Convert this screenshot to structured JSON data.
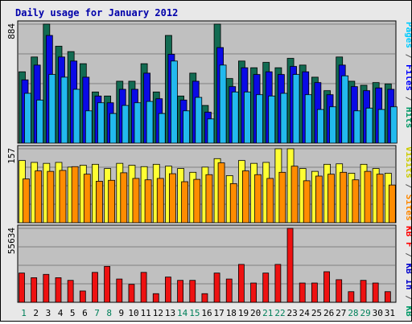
{
  "chart_data": {
    "type": "bar",
    "title": "Daily usage for January 2012",
    "days": [
      "1",
      "2",
      "3",
      "4",
      "5",
      "6",
      "7",
      "8",
      "9",
      "10",
      "11",
      "12",
      "13",
      "14",
      "15",
      "16",
      "17",
      "18",
      "19",
      "20",
      "21",
      "22",
      "23",
      "24",
      "25",
      "26",
      "27",
      "28",
      "29",
      "30",
      "31"
    ],
    "weekend_days": [
      "1",
      "7",
      "8",
      "14",
      "15",
      "21",
      "22",
      "28",
      "29"
    ],
    "panels": [
      {
        "id": "top",
        "max_label": "884",
        "ymax": 884,
        "right_label": [
          {
            "text": "Pages",
            "color": "#00ccff"
          },
          {
            "text": " / ",
            "color": "#555555"
          },
          {
            "text": "Files",
            "color": "#0000ff"
          },
          {
            "text": " / ",
            "color": "#555555"
          },
          {
            "text": "Hits",
            "color": "#009966"
          }
        ],
        "series": [
          {
            "name": "Hits",
            "color": "#126b52",
            "values": [
              530,
              640,
              884,
              720,
              680,
              590,
              380,
              350,
              460,
              460,
              590,
              380,
              800,
              350,
              520,
              280,
              884,
              480,
              610,
              560,
              600,
              560,
              630,
              580,
              490,
              390,
              640,
              460,
              430,
              450,
              440
            ]
          },
          {
            "name": "Files",
            "color": "#0a0ae6",
            "values": [
              470,
              580,
              800,
              640,
              610,
              490,
              350,
              300,
              400,
              400,
              520,
              330,
              660,
              320,
              460,
              230,
              710,
              420,
              560,
              510,
              530,
              510,
              570,
              530,
              450,
              360,
              580,
              420,
              390,
              410,
              400
            ]
          },
          {
            "name": "Pages",
            "color": "#22b9ee",
            "values": [
              370,
              320,
              510,
              490,
              400,
              240,
              300,
              220,
              280,
              300,
              310,
              220,
              610,
              240,
              340,
              180,
              580,
              380,
              380,
              360,
              350,
              370,
              510,
              360,
              250,
              270,
              500,
              240,
              260,
              250,
              270
            ]
          }
        ]
      },
      {
        "id": "middle",
        "max_label": "157",
        "ymax": 157,
        "right_label": [
          {
            "text": "Visits",
            "color": "#cccc00"
          },
          {
            "text": " / ",
            "color": "#555555"
          },
          {
            "text": "Sites",
            "color": "#ff8800"
          }
        ],
        "series": [
          {
            "name": "Visits",
            "color": "#ffff33",
            "values": [
              132,
              128,
              126,
              128,
              118,
              122,
              124,
              115,
              126,
              122,
              119,
              124,
              120,
              115,
              107,
              118,
              136,
              100,
              132,
              126,
              128,
              157,
              157,
              115,
              109,
              124,
              125,
              105,
              124,
              115,
              105
            ]
          },
          {
            "name": "Sites",
            "color": "#ff8c00",
            "values": [
              93,
              110,
              109,
              111,
              119,
              103,
              88,
              90,
              106,
              94,
              91,
              94,
              104,
              87,
              92,
              102,
              127,
              83,
              110,
              102,
              94,
              107,
              120,
              89,
              99,
              103,
              107,
              91,
              109,
              103,
              80
            ]
          }
        ]
      },
      {
        "id": "bottom",
        "max_label": "55634",
        "ymax": 55634,
        "right_label": [
          {
            "text": "KB F",
            "color": "#ff0000"
          },
          {
            "text": " / ",
            "color": "#555555"
          },
          {
            "text": "KB In",
            "color": "#0000cc"
          },
          {
            "text": " / ",
            "color": "#555555"
          },
          {
            "text": "KB Out",
            "color": "#009966"
          }
        ],
        "series": [
          {
            "name": "KB F",
            "color": "#ee1111",
            "values": [
              22000,
              18500,
              21000,
              18500,
              16500,
              8500,
              22500,
              27000,
              17500,
              13500,
              22500,
              6500,
              19000,
              16500,
              16500,
              6500,
              22000,
              17500,
              28500,
              14500,
              22000,
              28500,
              55634,
              14500,
              14500,
              23000,
              17000,
              8000,
              16500,
              14500,
              8000
            ]
          }
        ]
      }
    ]
  }
}
